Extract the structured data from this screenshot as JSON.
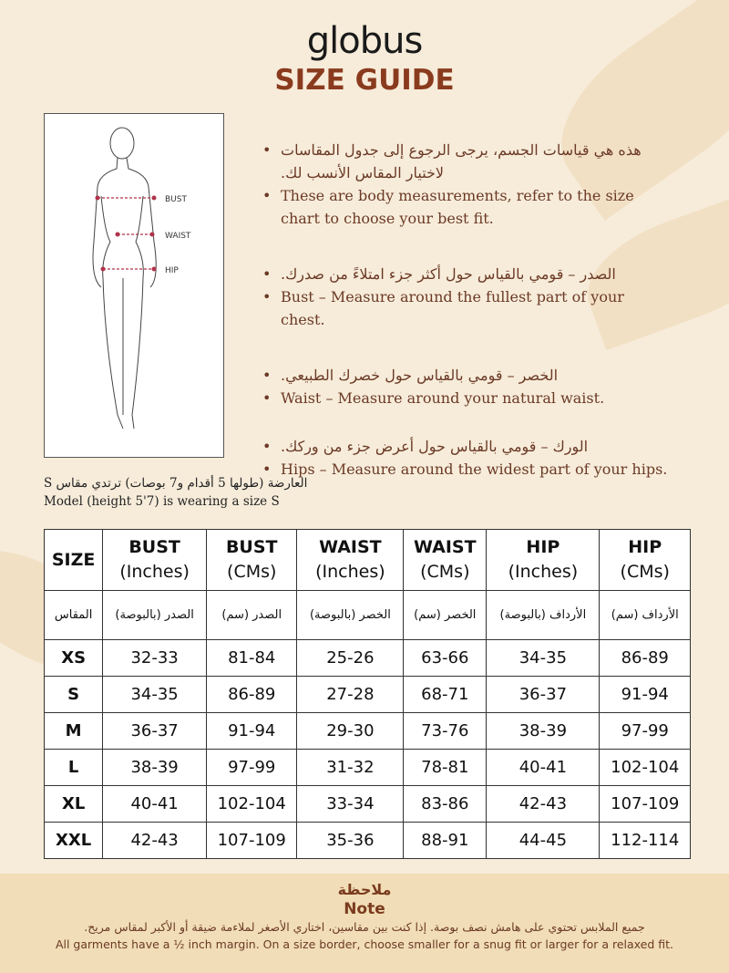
{
  "header": {
    "logo": "globus",
    "title": "SIZE GUIDE"
  },
  "figure": {
    "labels": [
      "BUST",
      "WAIST",
      "HIP"
    ]
  },
  "bullets": [
    {
      "ar": "هذه هي قياسات الجسم، يرجى الرجوع إلى جدول المقاسات لاختيار المقاس الأنسب لك.",
      "en": "These are body measurements, refer to the size chart to choose your best fit."
    },
    {
      "ar": "الصدر – قومي بالقياس حول أكثر جزء امتلاءً من صدرك.",
      "en": "Bust – Measure around the fullest part of your chest."
    },
    {
      "ar": "الخصر – قومي بالقياس حول خصرك الطبيعي.",
      "en": "Waist – Measure around your natural waist."
    },
    {
      "ar": "الورك – قومي بالقياس حول أعرض جزء من وركك.",
      "en": "Hips – Measure around the widest part of your hips."
    }
  ],
  "caption": {
    "ar": "العارضة (طولها 5 أقدام و7 بوصات) ترتدي مقاس S",
    "en": "Model (height 5'7) is wearing a size S"
  },
  "table": {
    "headers": [
      {
        "main": "SIZE",
        "sub": "",
        "ar": "المقاس"
      },
      {
        "main": "BUST",
        "sub": "(Inches)",
        "ar": "الصدر (بالبوصة)"
      },
      {
        "main": "BUST",
        "sub": "(CMs)",
        "ar": "الصدر (سم)"
      },
      {
        "main": "WAIST",
        "sub": "(Inches)",
        "ar": "الخصر (بالبوصة)"
      },
      {
        "main": "WAIST",
        "sub": "(CMs)",
        "ar": "الخصر (سم)"
      },
      {
        "main": "HIP",
        "sub": "(Inches)",
        "ar": "الأرداف (بالبوصة)"
      },
      {
        "main": "HIP",
        "sub": "(CMs)",
        "ar": "الأرداف (سم)"
      }
    ],
    "rows": [
      [
        "XS",
        "32-33",
        "81-84",
        "25-26",
        "63-66",
        "34-35",
        "86-89"
      ],
      [
        "S",
        "34-35",
        "86-89",
        "27-28",
        "68-71",
        "36-37",
        "91-94"
      ],
      [
        "M",
        "36-37",
        "91-94",
        "29-30",
        "73-76",
        "38-39",
        "97-99"
      ],
      [
        "L",
        "38-39",
        "97-99",
        "31-32",
        "78-81",
        "40-41",
        "102-104"
      ],
      [
        "XL",
        "40-41",
        "102-104",
        "33-34",
        "83-86",
        "42-43",
        "107-109"
      ],
      [
        "XXL",
        "42-43",
        "107-109",
        "35-36",
        "88-91",
        "44-45",
        "112-114"
      ]
    ]
  },
  "note": {
    "title_ar": "ملاحظة",
    "title_en": "Note",
    "text_ar": "جميع الملابس تحتوي على هامش نصف بوصة. إذا كنت بين مقاسين، اختاري الأصغر لملاءمة ضيقة أو الأكبر لمقاس مريح.",
    "text_en": "All garments have a ½ inch margin. On a size border, choose smaller for a snug fit or larger for a relaxed fit."
  },
  "colors": {
    "accent": "#8a3b1e",
    "background": "#f7ecda",
    "note_band": "#f1ddb7"
  }
}
